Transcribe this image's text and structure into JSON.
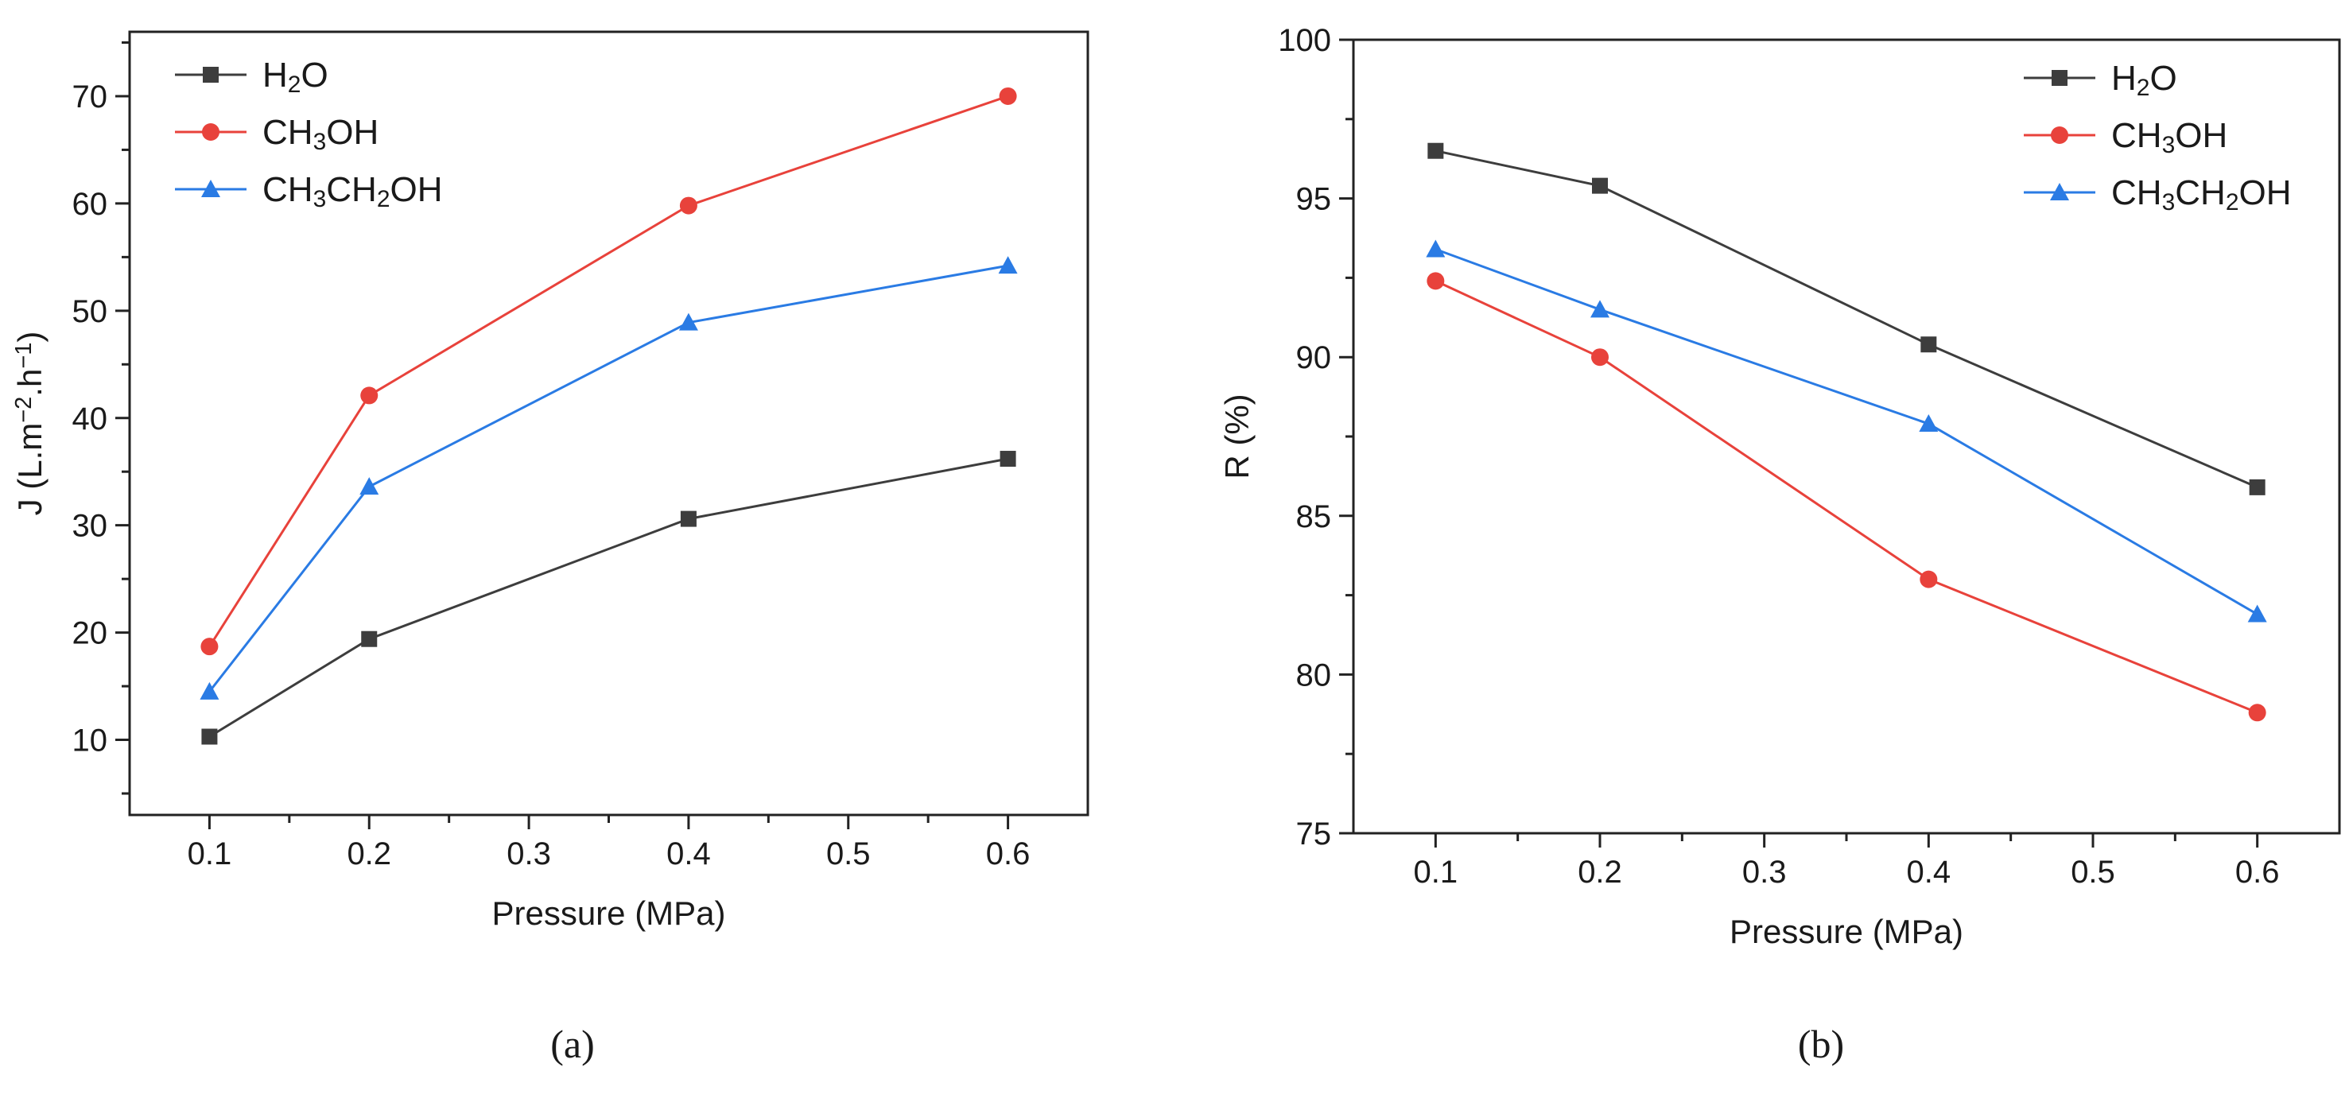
{
  "chart_data": [
    {
      "type": "line",
      "panel": "a",
      "panel_label": "(a)",
      "xlabel": "Pressure (MPa)",
      "ylabel": "J (L.m⁻².h⁻¹)",
      "xlim": [
        0.05,
        0.65
      ],
      "ylim": [
        3,
        76
      ],
      "xticks": [
        0.1,
        0.2,
        0.3,
        0.4,
        0.5,
        0.6
      ],
      "xtick_labels": [
        "0.1",
        "0.2",
        "0.3",
        "0.4",
        "0.5",
        "0.6"
      ],
      "yticks": [
        10,
        20,
        30,
        40,
        50,
        60,
        70
      ],
      "ytick_labels": [
        "10",
        "20",
        "30",
        "40",
        "50",
        "60",
        "70"
      ],
      "legend_position": "top-left",
      "x": [
        0.1,
        0.2,
        0.4,
        0.6
      ],
      "series": [
        {
          "name": "H₂O",
          "color": "#3d3d3d",
          "marker": "square",
          "values": [
            10.3,
            19.4,
            30.6,
            36.2
          ]
        },
        {
          "name": "CH₃OH",
          "color": "#e8423b",
          "marker": "circle",
          "values": [
            18.7,
            42.1,
            59.8,
            70.0
          ]
        },
        {
          "name": "CH₃CH₂OH",
          "color": "#2a7be4",
          "marker": "triangle",
          "values": [
            14.5,
            33.6,
            48.9,
            54.2
          ]
        }
      ]
    },
    {
      "type": "line",
      "panel": "b",
      "panel_label": "(b)",
      "xlabel": "Pressure (MPa)",
      "ylabel": "R (%)",
      "xlim": [
        0.05,
        0.65
      ],
      "ylim": [
        75,
        100
      ],
      "xticks": [
        0.1,
        0.2,
        0.3,
        0.4,
        0.5,
        0.6
      ],
      "xtick_labels": [
        "0.1",
        "0.2",
        "0.3",
        "0.4",
        "0.5",
        "0.6"
      ],
      "yticks": [
        75,
        80,
        85,
        90,
        95,
        100
      ],
      "ytick_labels": [
        "75",
        "80",
        "85",
        "90",
        "95",
        "100"
      ],
      "legend_position": "top-right",
      "x": [
        0.1,
        0.2,
        0.4,
        0.6
      ],
      "series": [
        {
          "name": "H₂O",
          "color": "#3d3d3d",
          "marker": "square",
          "values": [
            96.5,
            95.4,
            90.4,
            85.9
          ]
        },
        {
          "name": "CH₃OH",
          "color": "#e8423b",
          "marker": "circle",
          "values": [
            92.4,
            90.0,
            83.0,
            78.8
          ]
        },
        {
          "name": "CH₃CH₂OH",
          "color": "#2a7be4",
          "marker": "triangle",
          "values": [
            93.4,
            91.5,
            87.9,
            81.9
          ]
        }
      ]
    }
  ]
}
